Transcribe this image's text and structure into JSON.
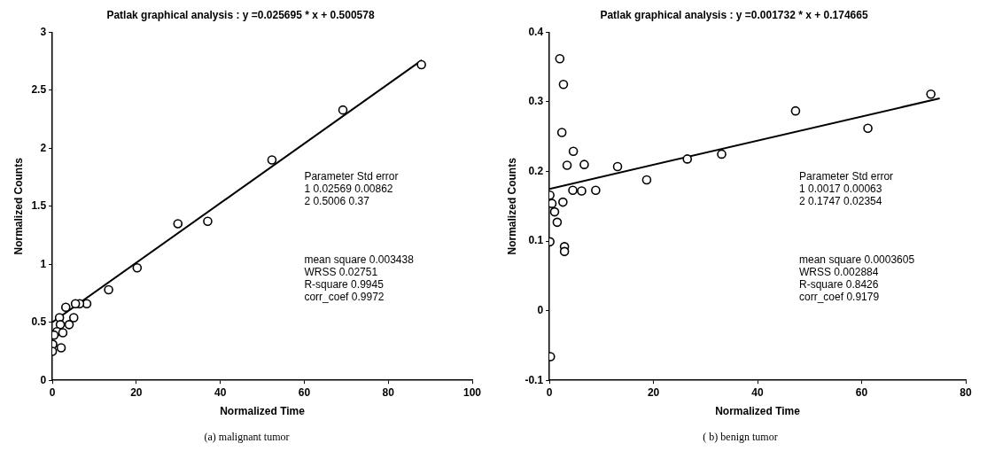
{
  "chart_data": [
    {
      "type": "scatter",
      "title": "Patlak graphical analysis : y =0.025695 * x + 0.500578",
      "xlabel": "Normalized Time",
      "ylabel": "Normalized Counts",
      "xlim": [
        0,
        100
      ],
      "xticks": [
        0,
        20,
        40,
        60,
        80,
        100
      ],
      "ylim": [
        0,
        3
      ],
      "yticks": [
        0,
        0.5,
        1,
        1.5,
        2,
        2.5,
        3
      ],
      "marker": "circle",
      "series": [
        {
          "type": "scatter",
          "color": "#000000",
          "x": [
            87.9,
            69.2,
            52.3,
            37.0,
            29.9,
            20.2,
            13.4,
            8.2,
            6.5,
            5.5,
            3.2,
            5.1,
            4.0,
            1.7,
            1.9,
            1.1,
            2.5,
            0.4,
            0.1,
            2.1,
            0.0
          ],
          "values": [
            2.72,
            2.33,
            1.9,
            1.37,
            1.35,
            0.97,
            0.78,
            0.66,
            0.66,
            0.66,
            0.63,
            0.54,
            0.48,
            0.54,
            0.48,
            0.42,
            0.41,
            0.39,
            0.31,
            0.28,
            0.25
          ]
        },
        {
          "type": "line",
          "color": "#000000",
          "marker": "none",
          "x": [
            0,
            88
          ],
          "values": [
            0.5,
            2.76
          ]
        }
      ],
      "annotations": [
        "Parameter Std error",
        "1 0.02569 0.00862",
        "2 0.5006 0.37",
        "mean square 0.003438",
        "WRSS 0.02751",
        "R-square 0.9945",
        "corr_coef 0.9972",
        "(a) malignant tumor"
      ]
    },
    {
      "type": "scatter",
      "title": "Patlak graphical analysis : y =0.001732 * x + 0.174665",
      "xlabel": "Normalized Time",
      "ylabel": "Normalized Counts",
      "xlim": [
        0,
        80
      ],
      "xticks": [
        0,
        20,
        40,
        60,
        80
      ],
      "ylim": [
        -0.1,
        0.4
      ],
      "yticks": [
        -0.1,
        0,
        0.1,
        0.2,
        0.3,
        0.4
      ],
      "marker": "circle",
      "series": [
        {
          "type": "scatter",
          "color": "#000000",
          "x": [
            2.0,
            2.7,
            2.4,
            4.6,
            3.4,
            6.7,
            13.1,
            18.7,
            26.5,
            33.1,
            61.2,
            73.3,
            47.3,
            4.5,
            6.2,
            8.9,
            0.1,
            0.5,
            2.6,
            1.0,
            1.5,
            0.1,
            2.9,
            2.9,
            0.2
          ],
          "values": [
            0.362,
            0.325,
            0.256,
            0.229,
            0.209,
            0.21,
            0.207,
            0.188,
            0.218,
            0.225,
            0.262,
            0.311,
            0.287,
            0.173,
            0.172,
            0.173,
            0.166,
            0.154,
            0.156,
            0.142,
            0.127,
            0.099,
            0.092,
            0.085,
            -0.066
          ]
        },
        {
          "type": "line",
          "color": "#000000",
          "marker": "none",
          "x": [
            0,
            75
          ],
          "values": [
            0.175,
            0.305
          ]
        }
      ],
      "annotations": [
        "Parameter Std error",
        "1 0.0017 0.00063",
        "2 0.1747 0.02354",
        "mean square 0.0003605",
        "WRSS 0.002884",
        "R-square 0.8426",
        "corr_coef 0.9179",
        "( b) benign tumor"
      ]
    }
  ]
}
